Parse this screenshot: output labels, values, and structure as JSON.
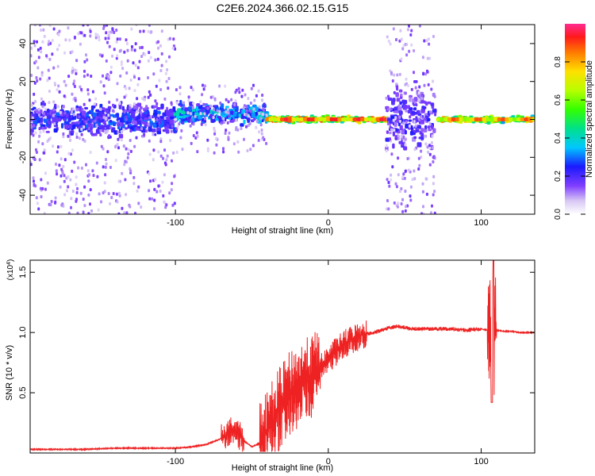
{
  "title": "C2E6.2024.366.02.15.G15",
  "colorbar": {
    "label": "Normalized spectral amplitude",
    "ticks": [
      "0.0",
      "0.2",
      "0.4",
      "0.6",
      "0.8"
    ],
    "tick_values": [
      0.0,
      0.2,
      0.4,
      0.6,
      0.8
    ],
    "range": [
      0,
      1
    ]
  },
  "chart_data": [
    {
      "type": "heatmap",
      "title": "",
      "xlabel": "Height of straight line (km)",
      "ylabel": "Frequency (Hz)",
      "xlim": [
        -195,
        135
      ],
      "ylim": [
        -50,
        50
      ],
      "x_ticks": [
        -100,
        0,
        100
      ],
      "x_tick_labels": [
        "-100",
        "0",
        "100"
      ],
      "y_ticks": [
        -40,
        -20,
        0,
        20,
        40
      ],
      "y_tick_labels": [
        "-40",
        "-20",
        "0",
        "20",
        "40"
      ],
      "description_points": [
        {
          "x_range": [
            -195,
            -100
          ],
          "center_freq": 0,
          "band_halfwidth": 10,
          "level": 0.25,
          "scatter": "wide"
        },
        {
          "x_range": [
            -100,
            -40
          ],
          "center_freq": 3,
          "band_halfwidth": 6,
          "level": 0.35,
          "scatter": "medium"
        },
        {
          "x_range": [
            -40,
            38
          ],
          "center_freq": 0,
          "band_halfwidth": 2,
          "level": 0.8,
          "scatter": "narrow"
        },
        {
          "x_range": [
            38,
            70
          ],
          "center_freq": 0,
          "band_halfwidth": 22,
          "level": 0.2,
          "scatter": "wide"
        },
        {
          "x_range": [
            72,
            135
          ],
          "center_freq": 0,
          "band_halfwidth": 2,
          "level": 0.75,
          "scatter": "narrow"
        }
      ]
    },
    {
      "type": "line",
      "title": "",
      "xlabel": "Height of straight line (km)",
      "ylabel": "SNR (10 * v/v)",
      "y_multiplier_label": "(x10^4)",
      "xlim": [
        -195,
        135
      ],
      "ylim": [
        0,
        1.6
      ],
      "x_ticks": [
        -100,
        0,
        100
      ],
      "x_tick_labels": [
        "-100",
        "0",
        "100"
      ],
      "y_ticks": [
        0.5,
        1.0,
        1.5
      ],
      "y_tick_labels": [
        "0.5",
        "1.0",
        "1.5"
      ],
      "series": [
        {
          "color": "#ee2222",
          "x": [
            -195,
            -180,
            -160,
            -140,
            -120,
            -100,
            -90,
            -80,
            -70,
            -62,
            -55,
            -50,
            -45,
            -40,
            -35,
            -30,
            -25,
            -20,
            -15,
            -10,
            -5,
            0,
            5,
            10,
            15,
            20,
            25,
            30,
            35,
            40,
            45,
            50,
            55,
            60,
            70,
            80,
            90,
            100,
            104,
            106,
            108,
            110,
            115,
            120,
            125,
            130,
            135
          ],
          "y": [
            0.03,
            0.03,
            0.03,
            0.04,
            0.04,
            0.04,
            0.05,
            0.07,
            0.12,
            0.2,
            0.1,
            0.05,
            0.08,
            0.18,
            0.3,
            0.4,
            0.5,
            0.55,
            0.6,
            0.65,
            0.7,
            0.78,
            0.84,
            0.9,
            0.94,
            0.97,
            0.99,
            1.0,
            1.02,
            1.04,
            1.05,
            1.04,
            1.03,
            1.03,
            1.03,
            1.03,
            1.02,
            1.03,
            1.02,
            1.03,
            0.95,
            1.02,
            1.01,
            1.01,
            1.0,
            1.0,
            1.0
          ]
        }
      ],
      "volatility_bands": [
        {
          "x_range": [
            -70,
            -55
          ],
          "amplitude": 0.12
        },
        {
          "x_range": [
            -45,
            -5
          ],
          "amplitude": 0.35
        },
        {
          "x_range": [
            -5,
            25
          ],
          "amplitude": 0.12
        },
        {
          "x_range": [
            25,
            100
          ],
          "amplitude": 0.03
        },
        {
          "x_range": [
            104,
            110
          ],
          "amplitude": 0.5
        }
      ]
    }
  ]
}
